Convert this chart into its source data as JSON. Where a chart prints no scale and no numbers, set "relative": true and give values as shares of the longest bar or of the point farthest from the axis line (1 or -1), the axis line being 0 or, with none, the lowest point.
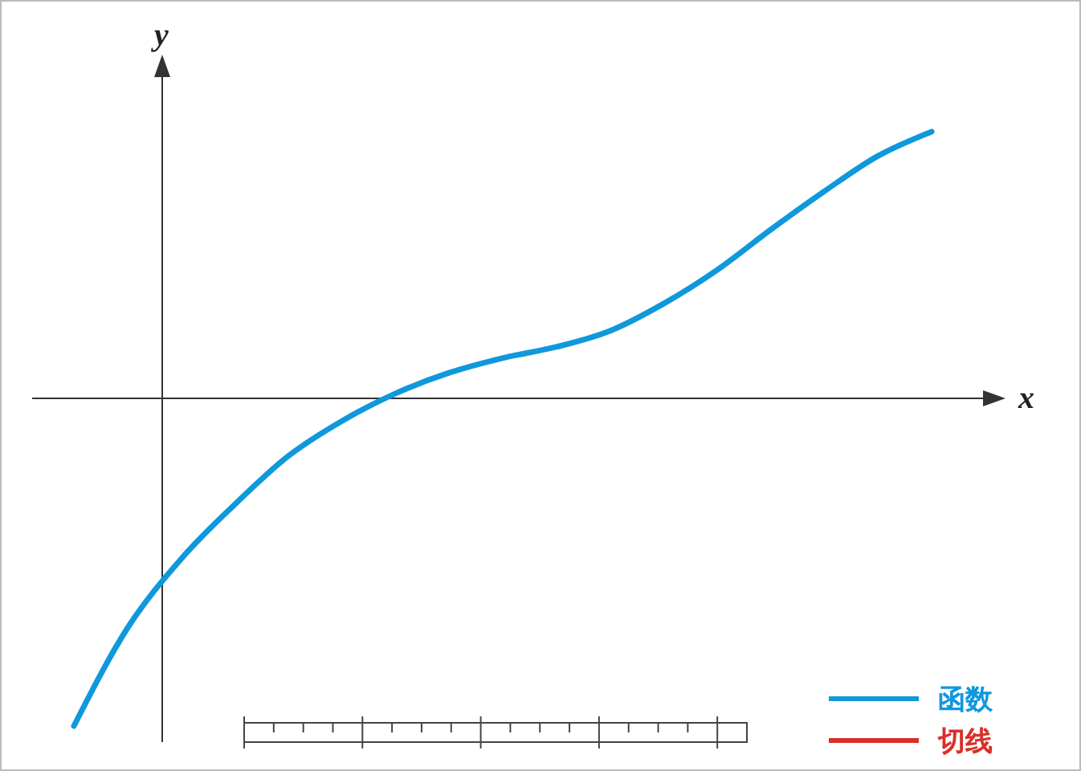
{
  "chart_data": {
    "type": "line",
    "xlabel": "x",
    "ylabel": "y",
    "relative": true,
    "categories": [
      null,
      null,
      null,
      null,
      null,
      null,
      null,
      null,
      null,
      null,
      null,
      null,
      null,
      null,
      null,
      null,
      null
    ],
    "series": [
      {
        "name": "函数",
        "color": "#0f98dc",
        "values": [
          -1,
          -0.701,
          -0.49,
          -0.324,
          -0.176,
          -0.069,
          0.015,
          0.078,
          0.123,
          0.157,
          0.206,
          0.289,
          0.392,
          0.515,
          0.632,
          0.74,
          0.814
        ]
      },
      {
        "name": "切线",
        "color": "#d9302a",
        "values": [
          null,
          null,
          null,
          null,
          null,
          null,
          null,
          null,
          null,
          null,
          null,
          null,
          null,
          null,
          null,
          null,
          null
        ]
      }
    ],
    "legend": "bottom right",
    "grid": false,
    "marker": "none",
    "line_style": "solid"
  }
}
